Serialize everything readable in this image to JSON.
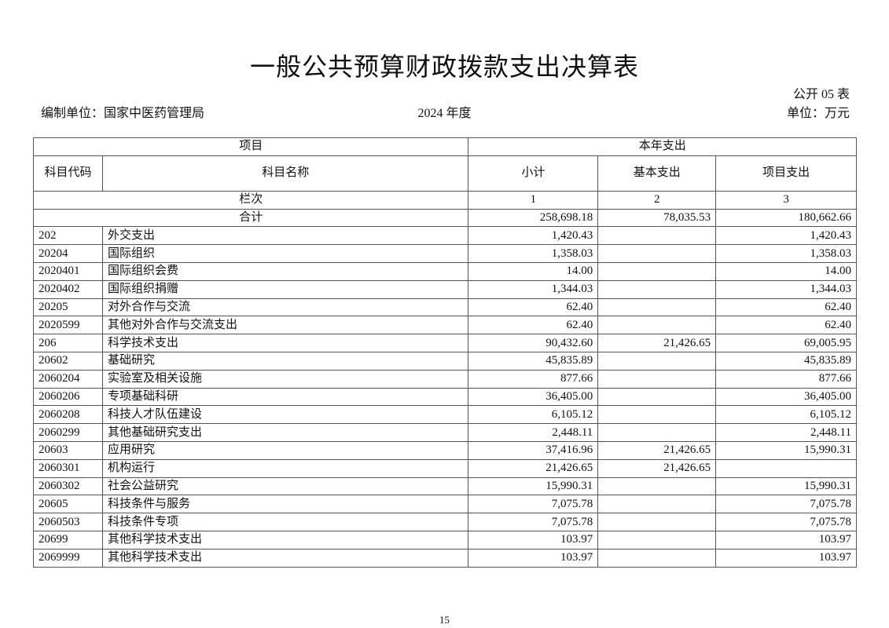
{
  "title": "一般公共预算财政拨款支出决算表",
  "form_no": "公开 05 表",
  "org": "编制单位：国家中医药管理局",
  "year": "2024 年度",
  "unit": "单位：万元",
  "table": {
    "header_item": "项目",
    "header_current": "本年支出",
    "col_code": "科目代码",
    "col_name": "科目名称",
    "col_subtotal": "小计",
    "col_basic": "基本支出",
    "col_project": "项目支出",
    "col_index_label": "栏次",
    "col_index": [
      "1",
      "2",
      "3"
    ],
    "total": {
      "label": "合计",
      "subtotal": "258,698.18",
      "basic": "78,035.53",
      "project": "180,662.66"
    },
    "rows": [
      {
        "code": "202",
        "name": "外交支出",
        "subtotal": "1,420.43",
        "basic": "",
        "project": "1,420.43"
      },
      {
        "code": "20204",
        "name": "国际组织",
        "subtotal": "1,358.03",
        "basic": "",
        "project": "1,358.03"
      },
      {
        "code": "2020401",
        "name": "国际组织会费",
        "subtotal": "14.00",
        "basic": "",
        "project": "14.00"
      },
      {
        "code": "2020402",
        "name": "国际组织捐赠",
        "subtotal": "1,344.03",
        "basic": "",
        "project": "1,344.03"
      },
      {
        "code": "20205",
        "name": "对外合作与交流",
        "subtotal": "62.40",
        "basic": "",
        "project": "62.40"
      },
      {
        "code": "2020599",
        "name": "其他对外合作与交流支出",
        "subtotal": "62.40",
        "basic": "",
        "project": "62.40"
      },
      {
        "code": "206",
        "name": "科学技术支出",
        "subtotal": "90,432.60",
        "basic": "21,426.65",
        "project": "69,005.95"
      },
      {
        "code": "20602",
        "name": "基础研究",
        "subtotal": "45,835.89",
        "basic": "",
        "project": "45,835.89"
      },
      {
        "code": "2060204",
        "name": "实验室及相关设施",
        "subtotal": "877.66",
        "basic": "",
        "project": "877.66"
      },
      {
        "code": "2060206",
        "name": "专项基础科研",
        "subtotal": "36,405.00",
        "basic": "",
        "project": "36,405.00"
      },
      {
        "code": "2060208",
        "name": "科技人才队伍建设",
        "subtotal": "6,105.12",
        "basic": "",
        "project": "6,105.12"
      },
      {
        "code": "2060299",
        "name": "其他基础研究支出",
        "subtotal": "2,448.11",
        "basic": "",
        "project": "2,448.11"
      },
      {
        "code": "20603",
        "name": "应用研究",
        "subtotal": "37,416.96",
        "basic": "21,426.65",
        "project": "15,990.31"
      },
      {
        "code": "2060301",
        "name": "机构运行",
        "subtotal": "21,426.65",
        "basic": "21,426.65",
        "project": ""
      },
      {
        "code": "2060302",
        "name": "社会公益研究",
        "subtotal": "15,990.31",
        "basic": "",
        "project": "15,990.31"
      },
      {
        "code": "20605",
        "name": "科技条件与服务",
        "subtotal": "7,075.78",
        "basic": "",
        "project": "7,075.78"
      },
      {
        "code": "2060503",
        "name": "科技条件专项",
        "subtotal": "7,075.78",
        "basic": "",
        "project": "7,075.78"
      },
      {
        "code": "20699",
        "name": "其他科学技术支出",
        "subtotal": "103.97",
        "basic": "",
        "project": "103.97"
      },
      {
        "code": "2069999",
        "name": "其他科学技术支出",
        "subtotal": "103.97",
        "basic": "",
        "project": "103.97"
      }
    ]
  },
  "page_number": "15"
}
